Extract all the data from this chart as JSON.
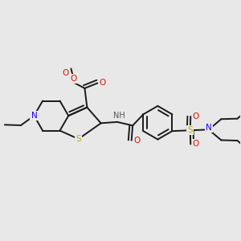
{
  "bg_color": "#e8e8e8",
  "bond_color": "#1a1a1a",
  "lw": 1.4,
  "atom_colors": {
    "O": "#dd1100",
    "N": "#2200ee",
    "S": "#bbaa00",
    "H_gray": "#555555"
  },
  "figsize": [
    3.0,
    3.0
  ],
  "dpi": 100
}
